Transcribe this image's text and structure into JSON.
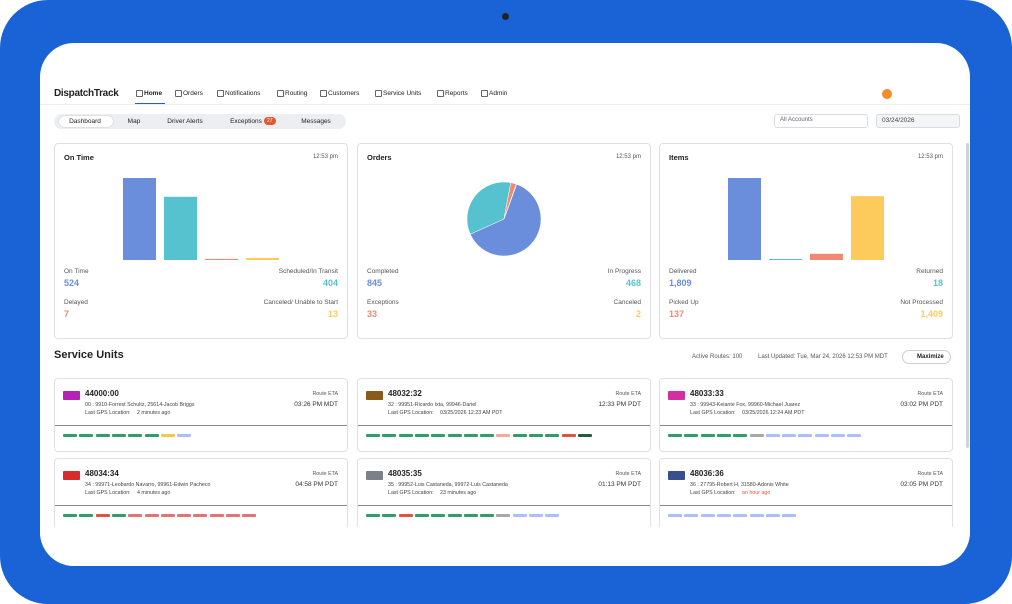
{
  "nav": {
    "logo": "DispatchTrack",
    "items": [
      "Home",
      "Orders",
      "Notifications",
      "Routing",
      "Customers",
      "Service Units",
      "Reports",
      "Admin"
    ]
  },
  "tabs": [
    {
      "label": "Dashboard"
    },
    {
      "label": "Map"
    },
    {
      "label": "Driver Alerts"
    },
    {
      "label": "Exceptions",
      "badge": "27"
    },
    {
      "label": "Messages"
    }
  ],
  "filters": {
    "account": "All Accounts",
    "date": "03/24/2026"
  },
  "cards": [
    {
      "title": "On Time",
      "time": "12:53 pm",
      "type": "bar",
      "metrics": [
        {
          "label": "On Time",
          "value": 524,
          "color": "#6a8edb"
        },
        {
          "label": "Scheduled/In Transit",
          "value": 404,
          "color": "#56c2cf"
        },
        {
          "label": "Delayed",
          "value": 7,
          "color": "#f08a72"
        },
        {
          "label": "Canceled/ Unable to Start",
          "value": 13,
          "color": "#fdca5c"
        }
      ]
    },
    {
      "title": "Orders",
      "time": "12:53 pm",
      "type": "pie",
      "metrics": [
        {
          "label": "Completed",
          "value": 845,
          "color": "#6a8edb"
        },
        {
          "label": "In Progress",
          "value": 468,
          "color": "#56c2cf"
        },
        {
          "label": "Exceptions",
          "value": 33,
          "color": "#f08a72"
        },
        {
          "label": "Canceled",
          "value": 2,
          "color": "#fdca5c"
        }
      ]
    },
    {
      "title": "Items",
      "time": "12:53 pm",
      "type": "bar",
      "metrics": [
        {
          "label": "Delivered",
          "value": 1809,
          "value_label": "1,809",
          "color": "#6a8edb"
        },
        {
          "label": "Returned",
          "value": 18,
          "color": "#56c2cf"
        },
        {
          "label": "Picked Up",
          "value": 137,
          "color": "#f08a72"
        },
        {
          "label": "Not Processed",
          "value": 1409,
          "value_label": "1,409",
          "color": "#fdca5c"
        }
      ]
    }
  ],
  "units_header": {
    "title": "Service Units",
    "active": "Active Routes: 100",
    "updated": "Last Updated: Tue, Mar 24, 2026 12:53 PM MDT",
    "button": "Maximize"
  },
  "units": [
    {
      "id": "44000:00",
      "truck_color": "#b522b5",
      "line": "00 : 9910-Forrest Schultz, 25614-Jacob Briggs",
      "gps_label": "Last GPS Location:",
      "gps_time": "2 minutes ago",
      "eta_label": "Route ETA",
      "eta": "03:26 PM MDT",
      "stops": [
        "#2e9e6b",
        "#2e9e6b",
        "#2e9e6b",
        "#2e9e6b",
        "#2e9e6b",
        "#2e9e6b",
        "#f2c94c",
        "#a9c1f5"
      ]
    },
    {
      "id": "48032:32",
      "truck_color": "#8a5a1c",
      "line": "32 : 99951-Ricardo Ixta, 99946-Dariel",
      "gps_label": "Last GPS Location:",
      "gps_time": "03/25/2026 12:23 AM PDT",
      "eta_label": "Route ETA",
      "eta": "12:33 PM PDT",
      "stops": [
        "#2e9e6b",
        "#2e9e6b",
        "#2e9e6b",
        "#2e9e6b",
        "#2e9e6b",
        "#2e9e6b",
        "#2e9e6b",
        "#2e9e6b",
        "#f4a9a0",
        "#2e9e6b",
        "#2e9e6b",
        "#2e9e6b",
        "#e0533d",
        "#1f5e3b"
      ]
    },
    {
      "id": "48033:33",
      "truck_color": "#d42fa0",
      "line": "33 : 99943-Keiante Fox, 99960-Michael Juarez",
      "gps_label": "Last GPS Location:",
      "gps_time": "03/25/2026 12:24 AM PDT",
      "eta_label": "Route ETA",
      "eta": "03:02 PM PDT",
      "stops": [
        "#2e9e6b",
        "#2e9e6b",
        "#2e9e6b",
        "#2e9e6b",
        "#2e9e6b",
        "#a8a8a8",
        "#a9c1f5",
        "#a9c1f5",
        "#a9c1f5",
        "#a9c1f5",
        "#a9c1f5",
        "#a9c1f5"
      ]
    },
    {
      "id": "48034:34",
      "truck_color": "#d92b2b",
      "line": "34 : 99971-Leobardo Navarro, 99961-Edwin Pacheco",
      "gps_label": "Last GPS Location:",
      "gps_time": "4 minutes ago",
      "eta_label": "Route ETA",
      "eta": "04:58 PM PDT",
      "stops": [
        "#2e9e6b",
        "#2e9e6b",
        "#e0533d",
        "#2e9e6b",
        "#e57373",
        "#e57373",
        "#e57373",
        "#e57373",
        "#e57373",
        "#e57373",
        "#e57373",
        "#e57373"
      ]
    },
    {
      "id": "48035:35",
      "truck_color": "#7c8189",
      "line": "35 : 99952-Luis Castaneda, 99972-Luis Castaneda",
      "gps_label": "Last GPS Location:",
      "gps_time": "23 minutes ago",
      "eta_label": "Route ETA",
      "eta": "01:13 PM PDT",
      "stops": [
        "#2e9e6b",
        "#2e9e6b",
        "#e0533d",
        "#2e9e6b",
        "#2e9e6b",
        "#2e9e6b",
        "#2e9e6b",
        "#2e9e6b",
        "#a8a8a8",
        "#a9c1f5",
        "#a9c1f5",
        "#a9c1f5"
      ]
    },
    {
      "id": "48036:36",
      "truck_color": "#3a4f8f",
      "line": "36 : 27795-Robert H, 31580-Adonis White",
      "gps_label": "Last GPS Location:",
      "gps_time": "an hour ago",
      "gps_alert": true,
      "eta_label": "Route ETA",
      "eta": "02:05 PM PDT",
      "stops": [
        "#a9c1f5",
        "#a9c1f5",
        "#a9c1f5",
        "#a9c1f5",
        "#a9c1f5",
        "#a9c1f5",
        "#a9c1f5",
        "#a9c1f5"
      ]
    }
  ]
}
